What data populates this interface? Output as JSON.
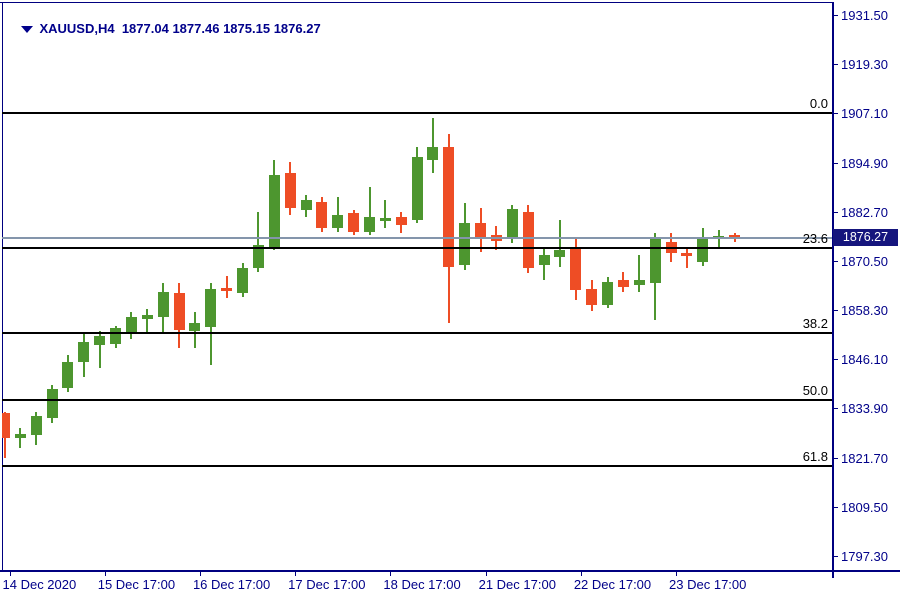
{
  "header": {
    "symbol_period": "XAUUSD,H4",
    "open": "1877.04",
    "high": "1877.46",
    "low": "1875.15",
    "close": "1876.27"
  },
  "colors": {
    "bull": "#4d962f",
    "bear": "#ee4d25",
    "axis_text": "#000089",
    "frame": "#000080",
    "fib_line": "#000000",
    "bid_line": "#8495ab",
    "badge_bg": "#15157d",
    "badge_text": "#ffffff"
  },
  "badge": {
    "price_label": "1876.27"
  },
  "chart_data": {
    "type": "candlestick",
    "symbol": "XAUUSD",
    "timeframe": "H4",
    "title": "XAUUSD,H4 1877.04 1877.46 1875.15 1876.27",
    "ylim": [
      1793.5,
      1934.7
    ],
    "grid": false,
    "y_axis_ticks": [
      "1931.50",
      "1919.30",
      "1907.10",
      "1894.90",
      "1882.70",
      "1870.50",
      "1858.30",
      "1846.10",
      "1833.90",
      "1821.70",
      "1809.50",
      "1797.30"
    ],
    "y_axis_values": [
      1931.5,
      1919.3,
      1907.1,
      1894.9,
      1882.7,
      1870.5,
      1858.3,
      1846.1,
      1833.9,
      1821.7,
      1809.5,
      1797.3
    ],
    "x_axis_labels": [
      {
        "text": "14 Dec 2020",
        "candle_index": 0
      },
      {
        "text": "15 Dec 17:00",
        "candle_index": 6
      },
      {
        "text": "16 Dec 17:00",
        "candle_index": 12
      },
      {
        "text": "17 Dec 17:00",
        "candle_index": 18
      },
      {
        "text": "18 Dec 17:00",
        "candle_index": 24
      },
      {
        "text": "21 Dec 17:00",
        "candle_index": 30
      },
      {
        "text": "22 Dec 17:00",
        "candle_index": 36
      },
      {
        "text": "23 Dec 17:00",
        "candle_index": 42
      }
    ],
    "fibonacci_levels": [
      {
        "label": "0.0",
        "price": 1907.3
      },
      {
        "label": "23.6",
        "price": 1873.8
      },
      {
        "label": "38.2",
        "price": 1852.7
      },
      {
        "label": "50.0",
        "price": 1835.9
      },
      {
        "label": "61.8",
        "price": 1819.6
      }
    ],
    "bid": {
      "price": 1876.27,
      "label": "1876.27"
    },
    "candles": [
      {
        "o": 1832.8,
        "h": 1833.0,
        "l": 1821.6,
        "c": 1826.6,
        "dir": "r"
      },
      {
        "o": 1826.5,
        "h": 1829.1,
        "l": 1824.1,
        "c": 1827.5,
        "dir": "g"
      },
      {
        "o": 1827.3,
        "h": 1833.0,
        "l": 1824.9,
        "c": 1832.0,
        "dir": "g"
      },
      {
        "o": 1831.5,
        "h": 1839.7,
        "l": 1830.3,
        "c": 1838.7,
        "dir": "g"
      },
      {
        "o": 1839.0,
        "h": 1847.2,
        "l": 1838.0,
        "c": 1845.4,
        "dir": "g"
      },
      {
        "o": 1845.4,
        "h": 1852.4,
        "l": 1841.7,
        "c": 1850.4,
        "dir": "g"
      },
      {
        "o": 1849.6,
        "h": 1853.1,
        "l": 1844.0,
        "c": 1851.9,
        "dir": "g"
      },
      {
        "o": 1849.9,
        "h": 1854.4,
        "l": 1848.9,
        "c": 1853.9,
        "dir": "g"
      },
      {
        "o": 1852.9,
        "h": 1857.8,
        "l": 1851.1,
        "c": 1856.6,
        "dir": "g"
      },
      {
        "o": 1856.1,
        "h": 1858.6,
        "l": 1852.9,
        "c": 1857.1,
        "dir": "g"
      },
      {
        "o": 1856.6,
        "h": 1865.0,
        "l": 1852.9,
        "c": 1862.8,
        "dir": "g"
      },
      {
        "o": 1862.6,
        "h": 1865.0,
        "l": 1848.9,
        "c": 1853.4,
        "dir": "r"
      },
      {
        "o": 1853.1,
        "h": 1857.8,
        "l": 1848.9,
        "c": 1855.1,
        "dir": "g"
      },
      {
        "o": 1854.1,
        "h": 1865.0,
        "l": 1844.7,
        "c": 1863.6,
        "dir": "g"
      },
      {
        "o": 1863.8,
        "h": 1866.8,
        "l": 1861.3,
        "c": 1863.1,
        "dir": "r"
      },
      {
        "o": 1862.6,
        "h": 1870.0,
        "l": 1861.6,
        "c": 1868.7,
        "dir": "g"
      },
      {
        "o": 1868.7,
        "h": 1882.6,
        "l": 1867.8,
        "c": 1874.5,
        "dir": "g"
      },
      {
        "o": 1873.7,
        "h": 1895.5,
        "l": 1873.2,
        "c": 1891.8,
        "dir": "g"
      },
      {
        "o": 1892.3,
        "h": 1895.0,
        "l": 1881.9,
        "c": 1883.6,
        "dir": "r"
      },
      {
        "o": 1883.1,
        "h": 1886.9,
        "l": 1881.4,
        "c": 1885.6,
        "dir": "g"
      },
      {
        "o": 1885.1,
        "h": 1886.4,
        "l": 1877.7,
        "c": 1878.7,
        "dir": "r"
      },
      {
        "o": 1878.7,
        "h": 1886.4,
        "l": 1877.7,
        "c": 1881.9,
        "dir": "g"
      },
      {
        "o": 1882.4,
        "h": 1883.1,
        "l": 1876.9,
        "c": 1877.7,
        "dir": "r"
      },
      {
        "o": 1877.7,
        "h": 1888.8,
        "l": 1876.9,
        "c": 1881.4,
        "dir": "g"
      },
      {
        "o": 1880.4,
        "h": 1885.6,
        "l": 1878.7,
        "c": 1881.2,
        "dir": "g"
      },
      {
        "o": 1881.4,
        "h": 1882.6,
        "l": 1877.4,
        "c": 1879.4,
        "dir": "r"
      },
      {
        "o": 1880.7,
        "h": 1898.8,
        "l": 1879.9,
        "c": 1896.3,
        "dir": "g"
      },
      {
        "o": 1895.5,
        "h": 1906.0,
        "l": 1892.3,
        "c": 1898.8,
        "dir": "g"
      },
      {
        "o": 1898.8,
        "h": 1902.0,
        "l": 1855.1,
        "c": 1869.0,
        "dir": "r"
      },
      {
        "o": 1869.5,
        "h": 1884.9,
        "l": 1868.2,
        "c": 1879.9,
        "dir": "g"
      },
      {
        "o": 1879.9,
        "h": 1883.6,
        "l": 1872.7,
        "c": 1876.4,
        "dir": "r"
      },
      {
        "o": 1876.9,
        "h": 1879.2,
        "l": 1873.2,
        "c": 1875.5,
        "dir": "r"
      },
      {
        "o": 1876.0,
        "h": 1884.4,
        "l": 1875.0,
        "c": 1883.4,
        "dir": "g"
      },
      {
        "o": 1882.6,
        "h": 1884.4,
        "l": 1867.5,
        "c": 1868.7,
        "dir": "r"
      },
      {
        "o": 1869.5,
        "h": 1874.0,
        "l": 1865.8,
        "c": 1872.0,
        "dir": "g"
      },
      {
        "o": 1871.5,
        "h": 1880.7,
        "l": 1869.0,
        "c": 1873.2,
        "dir": "g"
      },
      {
        "o": 1873.7,
        "h": 1876.2,
        "l": 1860.8,
        "c": 1863.3,
        "dir": "r"
      },
      {
        "o": 1863.6,
        "h": 1865.8,
        "l": 1858.1,
        "c": 1859.6,
        "dir": "r"
      },
      {
        "o": 1859.6,
        "h": 1866.5,
        "l": 1858.8,
        "c": 1865.3,
        "dir": "g"
      },
      {
        "o": 1865.8,
        "h": 1867.8,
        "l": 1862.8,
        "c": 1864.0,
        "dir": "r"
      },
      {
        "o": 1864.5,
        "h": 1872.0,
        "l": 1862.8,
        "c": 1865.8,
        "dir": "g"
      },
      {
        "o": 1865.0,
        "h": 1877.4,
        "l": 1855.8,
        "c": 1876.2,
        "dir": "g"
      },
      {
        "o": 1875.2,
        "h": 1877.4,
        "l": 1870.2,
        "c": 1872.5,
        "dir": "r"
      },
      {
        "o": 1872.5,
        "h": 1874.0,
        "l": 1868.7,
        "c": 1871.7,
        "dir": "r"
      },
      {
        "o": 1870.2,
        "h": 1878.7,
        "l": 1869.2,
        "c": 1876.4,
        "dir": "g"
      },
      {
        "o": 1876.2,
        "h": 1878.2,
        "l": 1874.0,
        "c": 1876.7,
        "dir": "g"
      },
      {
        "o": 1877.04,
        "h": 1877.46,
        "l": 1875.15,
        "c": 1876.27,
        "dir": "r"
      }
    ]
  }
}
